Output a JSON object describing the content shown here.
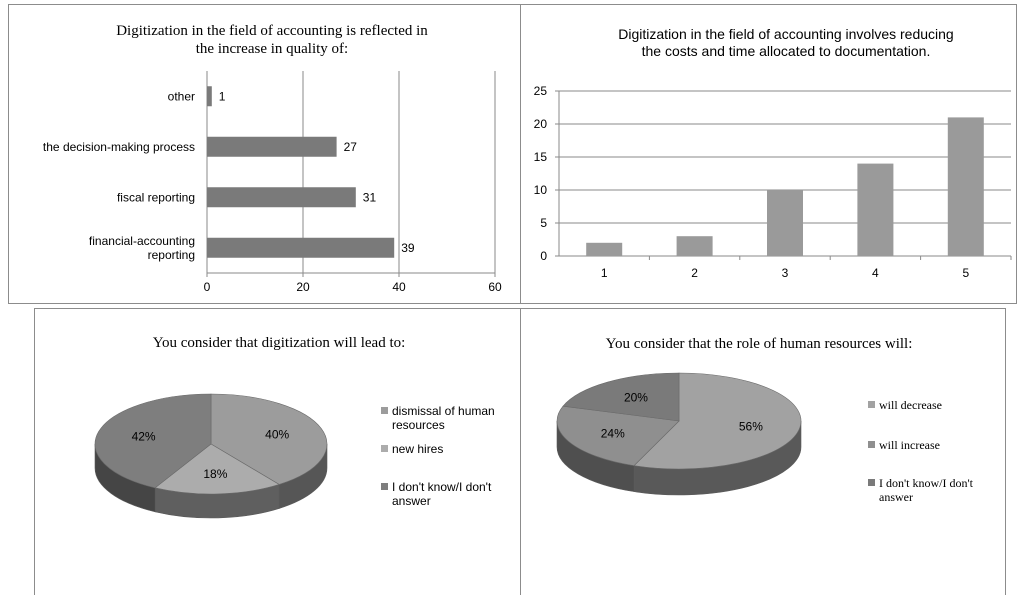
{
  "chart_data": [
    {
      "type": "bar",
      "orientation": "horizontal",
      "title_lines": [
        "Digitization in the field of accounting is reflected in",
        "the increase in quality of:"
      ],
      "categories": [
        [
          "financial-accounting",
          "reporting"
        ],
        [
          "fiscal reporting"
        ],
        [
          "the decision-making process"
        ],
        [
          "other"
        ]
      ],
      "values": [
        39,
        31,
        27,
        1
      ],
      "xlim": [
        0,
        60
      ],
      "xticks": [
        0,
        20,
        40,
        60
      ],
      "grid": true,
      "bar_color": "#7a7a7a"
    },
    {
      "type": "bar",
      "orientation": "vertical",
      "title_lines": [
        "Digitization in the field of accounting involves reducing",
        "the costs and time allocated to documentation."
      ],
      "categories": [
        "1",
        "2",
        "3",
        "4",
        "5"
      ],
      "values": [
        2,
        3,
        10,
        14,
        21
      ],
      "ylim": [
        0,
        25
      ],
      "yticks": [
        0,
        5,
        10,
        15,
        20,
        25
      ],
      "grid": true,
      "bar_color": "#9a9a9a"
    },
    {
      "type": "pie",
      "title": "You consider that digitization will lead to:",
      "slices": [
        {
          "label": [
            "dismissal of human",
            "resources"
          ],
          "value": 40,
          "display": "40%",
          "color": "#9c9c9c"
        },
        {
          "label": [
            "new hires"
          ],
          "value": 18,
          "display": "18%",
          "color": "#acacac"
        },
        {
          "label": [
            "I don't know/I don't",
            "answer"
          ],
          "value": 42,
          "display": "42%",
          "color": "#7e7e7e"
        }
      ],
      "legend": "right"
    },
    {
      "type": "pie",
      "title": "You consider that the role of human resources will:",
      "slices": [
        {
          "label": [
            "will decrease"
          ],
          "value": 56,
          "display": "56%",
          "color": "#a2a2a2"
        },
        {
          "label": [
            "will increase"
          ],
          "value": 24,
          "display": "24%",
          "color": "#8f8f8f"
        },
        {
          "label": [
            "I don't know/I don't",
            "answer"
          ],
          "value": 20,
          "display": "20%",
          "color": "#7a7a7a"
        }
      ],
      "legend": "right"
    }
  ]
}
